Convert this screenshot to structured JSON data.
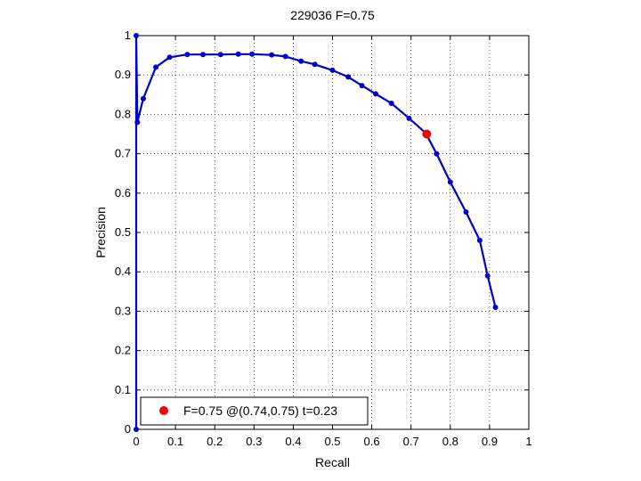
{
  "chart_data": {
    "type": "line",
    "title": "229036 F=0.75",
    "xlabel": "Recall",
    "ylabel": "Precision",
    "xlim": [
      0,
      1
    ],
    "ylim": [
      0,
      1
    ],
    "grid": true,
    "x_ticks": [
      "0",
      "0.1",
      "0.2",
      "0.3",
      "0.4",
      "0.5",
      "0.6",
      "0.7",
      "0.8",
      "0.9",
      "1"
    ],
    "y_ticks": [
      "0",
      "0.1",
      "0.2",
      "0.3",
      "0.4",
      "0.5",
      "0.6",
      "0.7",
      "0.8",
      "0.9",
      "1"
    ],
    "legend_position": "bottom-left",
    "series": [
      {
        "color": "#0000cc",
        "marker": "dot",
        "points": [
          [
            0.0,
            0.0
          ],
          [
            0.0,
            1.0
          ],
          [
            0.003,
            0.78
          ],
          [
            0.018,
            0.84
          ],
          [
            0.05,
            0.92
          ],
          [
            0.085,
            0.945
          ],
          [
            0.13,
            0.952
          ],
          [
            0.17,
            0.952
          ],
          [
            0.215,
            0.952
          ],
          [
            0.26,
            0.953
          ],
          [
            0.295,
            0.953
          ],
          [
            0.345,
            0.951
          ],
          [
            0.38,
            0.947
          ],
          [
            0.42,
            0.935
          ],
          [
            0.455,
            0.927
          ],
          [
            0.5,
            0.912
          ],
          [
            0.54,
            0.895
          ],
          [
            0.575,
            0.873
          ],
          [
            0.61,
            0.852
          ],
          [
            0.65,
            0.828
          ],
          [
            0.695,
            0.79
          ],
          [
            0.737,
            0.753
          ],
          [
            0.765,
            0.7
          ],
          [
            0.8,
            0.628
          ],
          [
            0.84,
            0.552
          ],
          [
            0.875,
            0.48
          ],
          [
            0.895,
            0.39
          ],
          [
            0.915,
            0.31
          ]
        ]
      }
    ],
    "best_point": {
      "x": 0.74,
      "y": 0.75,
      "color": "#ff0000"
    },
    "legend": {
      "label": "F=0.75 @(0.74,0.75) t=0.23"
    }
  }
}
